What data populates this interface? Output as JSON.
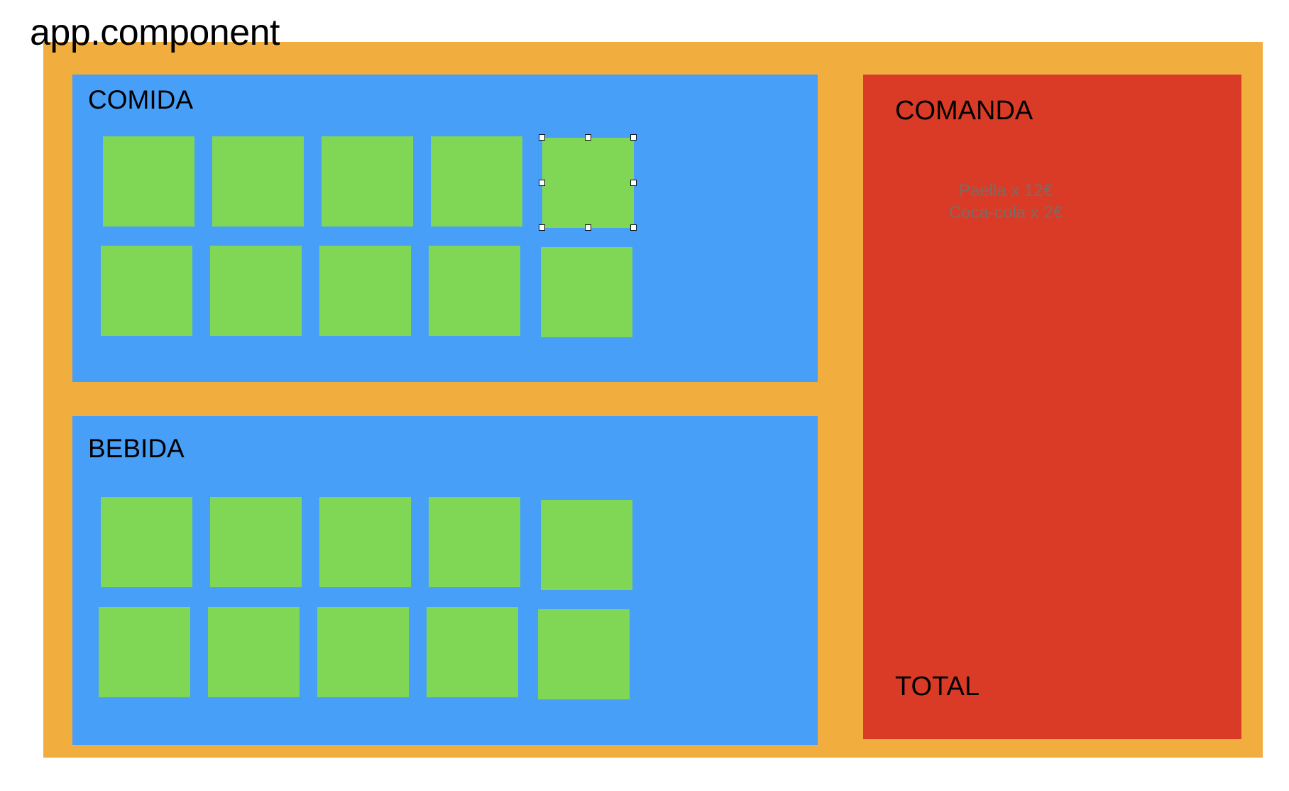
{
  "canvas": {
    "title": "app.component"
  },
  "comida": {
    "title": "COMIDA"
  },
  "bebida": {
    "title": "BEBIDA"
  },
  "comanda": {
    "title": "COMANDA",
    "items": [
      "Paella x 12€",
      "Coca-cola x 2€"
    ],
    "total_label": "TOTAL"
  },
  "colors": {
    "app_background": "#f1ae3e",
    "section_background": "#479ff8",
    "tile": "#80d755",
    "comanda_background": "#da3b26"
  }
}
